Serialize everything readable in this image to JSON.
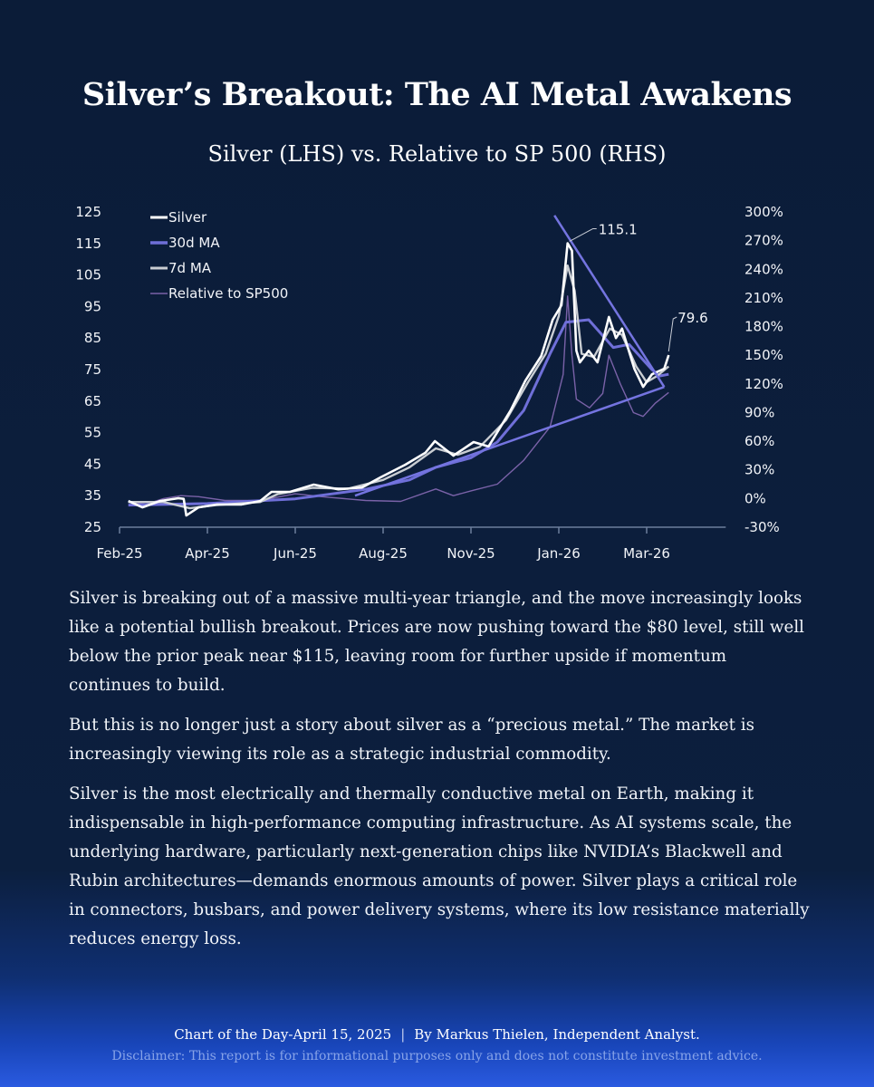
{
  "header": {
    "title": "Silver’s Breakout: The AI Metal Awakens",
    "subtitle": "Silver (LHS) vs. Relative to SP 500 (RHS)"
  },
  "chart_data": {
    "type": "line",
    "title": "Silver (LHS) vs. Relative to SP 500 (RHS)",
    "x_tick_labels": [
      "Feb-25",
      "Apr-25",
      "Jun-25",
      "Aug-25",
      "Nov-25",
      "Jan-26",
      "Mar-26"
    ],
    "x_units": "tick index (0 = Feb-25)",
    "x_range": [
      0,
      6.9
    ],
    "y_left": {
      "ticks": [
        25,
        35,
        45,
        55,
        65,
        75,
        85,
        95,
        105,
        115,
        125
      ],
      "range": [
        25,
        125
      ]
    },
    "y_right": {
      "ticks": [
        "-30%",
        "0%",
        "30%",
        "60%",
        "90%",
        "120%",
        "150%",
        "180%",
        "210%",
        "240%",
        "270%",
        "300%"
      ],
      "range": [
        -30,
        300
      ]
    },
    "legend": {
      "position": "top-left",
      "entries": [
        "Silver",
        "30d MA",
        "7d MA",
        "Relative to SP500"
      ]
    },
    "colors": {
      "silver": "#ffffff",
      "ma30": "#6f6fd8",
      "ma7": "#c9cdd2",
      "relative": "#7a62a8",
      "trend": "#7474e0"
    },
    "series": [
      {
        "name": "Silver",
        "axis": "left",
        "points": [
          [
            0.1,
            33.3
          ],
          [
            0.26,
            31.3
          ],
          [
            0.46,
            33.3
          ],
          [
            0.67,
            34.2
          ],
          [
            0.73,
            34
          ],
          [
            0.76,
            28.7
          ],
          [
            0.9,
            31.3
          ],
          [
            1.11,
            32.2
          ],
          [
            1.39,
            32.2
          ],
          [
            1.6,
            33.3
          ],
          [
            1.73,
            36.2
          ],
          [
            1.94,
            36.2
          ],
          [
            2.21,
            38.5
          ],
          [
            2.49,
            37
          ],
          [
            2.76,
            37.6
          ],
          [
            2.97,
            40.8
          ],
          [
            3.25,
            44.8
          ],
          [
            3.48,
            48.6
          ],
          [
            3.59,
            52.3
          ],
          [
            3.8,
            47.7
          ],
          [
            4.03,
            52
          ],
          [
            4.2,
            50.6
          ],
          [
            4.45,
            62
          ],
          [
            4.62,
            71.5
          ],
          [
            4.8,
            79.3
          ],
          [
            4.93,
            90.8
          ],
          [
            5.03,
            95.4
          ],
          [
            5.1,
            115.1
          ],
          [
            5.15,
            112.7
          ],
          [
            5.2,
            81
          ],
          [
            5.24,
            77.3
          ],
          [
            5.34,
            81
          ],
          [
            5.44,
            77.3
          ],
          [
            5.57,
            91.7
          ],
          [
            5.65,
            85
          ],
          [
            5.72,
            88
          ],
          [
            5.86,
            75.3
          ],
          [
            5.96,
            69.5
          ],
          [
            6.06,
            73.5
          ],
          [
            6.2,
            75.3
          ],
          [
            6.25,
            79.6
          ]
        ]
      },
      {
        "name": "30d MA",
        "axis": "left",
        "points": [
          [
            0.1,
            32
          ],
          [
            1,
            32.5
          ],
          [
            2,
            34
          ],
          [
            2.8,
            37
          ],
          [
            3.3,
            40
          ],
          [
            3.6,
            44
          ],
          [
            4.0,
            47
          ],
          [
            4.3,
            52
          ],
          [
            4.6,
            62
          ],
          [
            4.9,
            80
          ],
          [
            5.08,
            90
          ],
          [
            5.34,
            90.8
          ],
          [
            5.62,
            82
          ],
          [
            5.8,
            83
          ],
          [
            6.06,
            75
          ],
          [
            6.15,
            73
          ],
          [
            6.25,
            73.5
          ]
        ]
      },
      {
        "name": "7d MA",
        "axis": "left",
        "points": [
          [
            0.1,
            33
          ],
          [
            0.5,
            33
          ],
          [
            0.8,
            31
          ],
          [
            1.1,
            32
          ],
          [
            1.6,
            33
          ],
          [
            1.8,
            35.5
          ],
          [
            2.2,
            37.5
          ],
          [
            2.6,
            37.2
          ],
          [
            3.0,
            40
          ],
          [
            3.3,
            44
          ],
          [
            3.6,
            50
          ],
          [
            3.85,
            48
          ],
          [
            4.1,
            50.5
          ],
          [
            4.4,
            59
          ],
          [
            4.65,
            71
          ],
          [
            4.85,
            80
          ],
          [
            5.0,
            92
          ],
          [
            5.1,
            108
          ],
          [
            5.18,
            100
          ],
          [
            5.26,
            80
          ],
          [
            5.4,
            79
          ],
          [
            5.58,
            88
          ],
          [
            5.72,
            86
          ],
          [
            5.88,
            76
          ],
          [
            6.0,
            71
          ],
          [
            6.12,
            73
          ],
          [
            6.25,
            76
          ]
        ]
      },
      {
        "name": "Relative to SP500",
        "axis": "right",
        "points": [
          [
            0.1,
            -3
          ],
          [
            0.3,
            -6
          ],
          [
            0.5,
            0
          ],
          [
            0.7,
            3
          ],
          [
            0.9,
            2
          ],
          [
            1.2,
            -2
          ],
          [
            1.6,
            -2
          ],
          [
            2.0,
            5
          ],
          [
            2.3,
            2
          ],
          [
            2.8,
            -2
          ],
          [
            3.2,
            -3
          ],
          [
            3.6,
            10
          ],
          [
            3.8,
            3
          ],
          [
            4.0,
            8
          ],
          [
            4.3,
            15
          ],
          [
            4.6,
            40
          ],
          [
            4.9,
            75
          ],
          [
            5.05,
            130
          ],
          [
            5.1,
            212
          ],
          [
            5.15,
            150
          ],
          [
            5.2,
            104
          ],
          [
            5.35,
            95
          ],
          [
            5.5,
            110
          ],
          [
            5.57,
            150
          ],
          [
            5.7,
            120
          ],
          [
            5.85,
            90
          ],
          [
            5.96,
            86
          ],
          [
            6.1,
            100
          ],
          [
            6.25,
            111
          ]
        ]
      }
    ],
    "trendlines": [
      {
        "name": "upper-trendline",
        "from": [
          4.95,
          123.9
        ],
        "to": [
          6.2,
          69.5
        ]
      },
      {
        "name": "lower-trendline",
        "from": [
          2.68,
          35
        ],
        "to": [
          6.2,
          69.5
        ]
      }
    ],
    "annotations": [
      {
        "text": "115.1",
        "x": 5.1,
        "y": 115.1
      },
      {
        "text": "79.6",
        "x": 6.25,
        "y": 79.6
      }
    ]
  },
  "body": {
    "paragraphs": [
      "Silver is breaking out of a massive multi-year triangle, and the move increasingly looks like a potential bullish breakout. Prices are now pushing toward the $80 level, still well below the prior peak near $115, leaving room for further upside if momentum continues to build.",
      "But this is no longer just a story about silver as a “precious metal.” The market is increasingly viewing its role as a strategic industrial commodity.",
      "Silver is the most electrically and thermally conductive metal on Earth, making it indispensable in high-performance computing infrastructure. As AI systems scale, the underlying hardware, particularly next-generation chips like NVIDIA’s Blackwell and Rubin architectures—demands enormous amounts of power. Silver plays a critical role in connectors, busbars, and power delivery systems, where its low resistance materially reduces energy loss."
    ]
  },
  "footer": {
    "chart_of_day": "Chart of the Day-April 15, 2025",
    "separator": "|",
    "author": "By Markus Thielen, Independent Analyst.",
    "disclaimer": "Disclaimer: This report is for informational purposes only and does not constitute investment advice."
  }
}
